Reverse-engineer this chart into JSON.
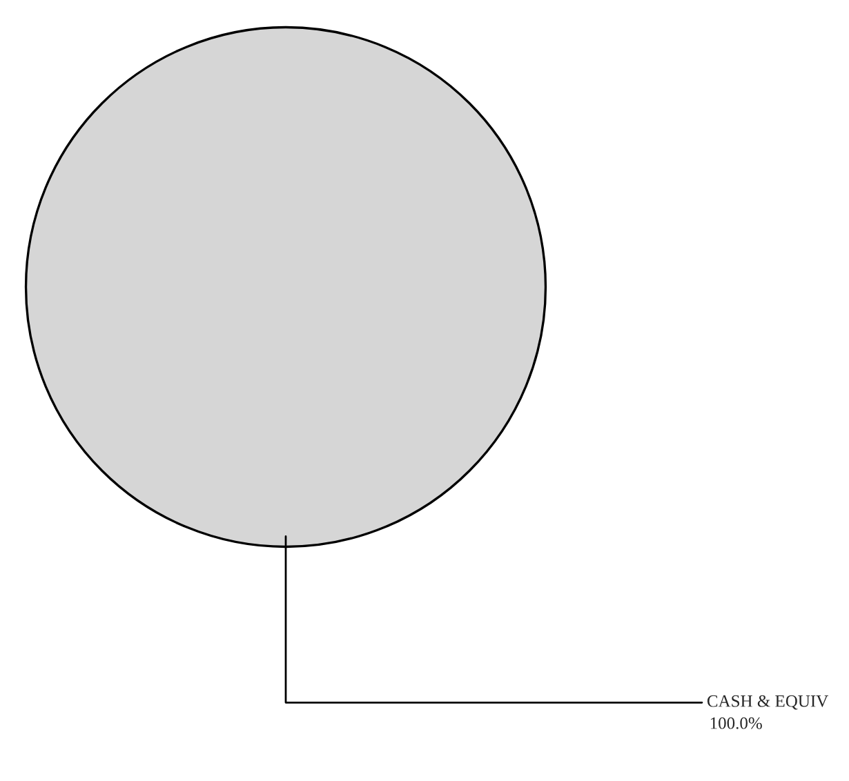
{
  "chart_data": {
    "type": "pie",
    "categories": [
      "CASH & EQUIV"
    ],
    "values": [
      100
    ],
    "colors": [
      "#d6d6d6"
    ],
    "value_labels": [
      "100.0%"
    ],
    "legend": false
  }
}
